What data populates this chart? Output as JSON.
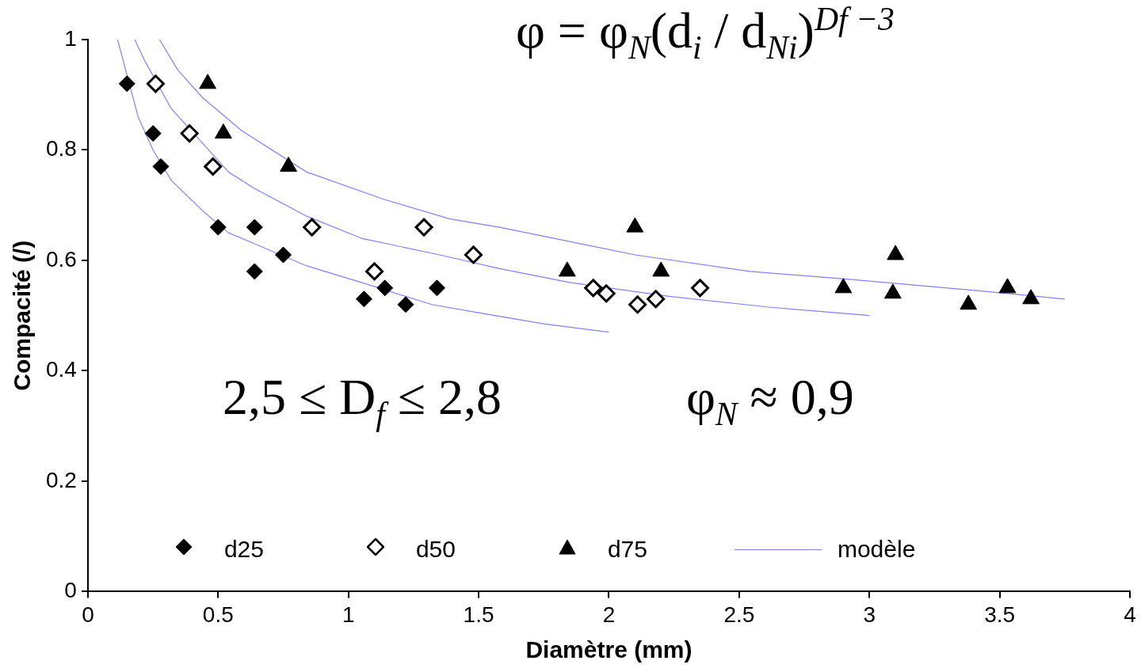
{
  "chart_data": {
    "type": "scatter",
    "xlabel": "Diamètre (mm)",
    "ylabel": "Compacité (/)",
    "xlim": [
      0,
      4
    ],
    "xticks": [
      0,
      0.5,
      1,
      1.5,
      2,
      2.5,
      3,
      3.5,
      4
    ],
    "ylim": [
      0,
      1
    ],
    "yticks": [
      0,
      0.2,
      0.4,
      0.6,
      0.8,
      1
    ],
    "grid": false,
    "legend": "bottom",
    "annotations": [
      "φ = φ$_{N}$(d$_{i}$ / d$_{Ni}$)$^{Df −3}$",
      "2,5 ≤ D$_{f}$ ≤ 2,8",
      "φ$_{N}$ ≈ 0,9"
    ],
    "series": [
      {
        "name": "d25",
        "color": "#000000",
        "marker": "diamond",
        "x": [
          0.15,
          0.25,
          0.28,
          0.5,
          0.64,
          0.64,
          0.75,
          1.06,
          1.14,
          1.22,
          1.34
        ],
        "values": [
          0.92,
          0.83,
          0.77,
          0.66,
          0.66,
          0.58,
          0.61,
          0.53,
          0.55,
          0.52,
          0.55
        ]
      },
      {
        "name": "d50",
        "color": "#000000",
        "marker": "diamond",
        "x": [
          0.26,
          0.39,
          0.48,
          0.86,
          1.1,
          1.29,
          1.48,
          1.94,
          1.99,
          2.11,
          2.18,
          2.35
        ],
        "values": [
          0.92,
          0.83,
          0.77,
          0.66,
          0.58,
          0.66,
          0.61,
          0.55,
          0.54,
          0.52,
          0.53,
          0.55
        ]
      },
      {
        "name": "d75",
        "color": "#000000",
        "marker": "triangle",
        "x": [
          0.46,
          0.52,
          0.77,
          1.84,
          2.1,
          2.2,
          2.9,
          3.09,
          3.1,
          3.38,
          3.53,
          3.62
        ],
        "values": [
          0.92,
          0.83,
          0.77,
          0.58,
          0.66,
          0.58,
          0.55,
          0.54,
          0.61,
          0.52,
          0.55,
          0.53
        ]
      },
      {
        "name": "modèle",
        "type": "line",
        "color": "#8080ff",
        "marker": "none",
        "x": [
          0.114,
          0.193,
          0.25,
          0.32,
          0.44,
          0.54,
          0.64,
          0.84,
          1.05,
          1.32,
          1.5,
          1.75,
          2.0
        ],
        "values": [
          1.0,
          0.86,
          0.8,
          0.745,
          0.69,
          0.65,
          0.63,
          0.59,
          0.56,
          0.52,
          0.505,
          0.485,
          0.47
        ]
      },
      {
        "type": "line",
        "color": "#8080ff",
        "marker": "none",
        "x": [
          0.18,
          0.22,
          0.32,
          0.54,
          0.64,
          0.84,
          1.05,
          1.35,
          1.58,
          1.85,
          2.23,
          2.62,
          3.0
        ],
        "values": [
          1.0,
          0.96,
          0.875,
          0.76,
          0.73,
          0.68,
          0.64,
          0.61,
          0.585,
          0.56,
          0.535,
          0.515,
          0.5
        ]
      },
      {
        "type": "line",
        "color": "#8080ff",
        "marker": "none",
        "x": [
          0.275,
          0.345,
          0.44,
          0.59,
          0.84,
          1.14,
          1.39,
          1.58,
          2.1,
          2.54,
          2.94,
          3.42,
          3.75
        ],
        "values": [
          1.0,
          0.945,
          0.895,
          0.835,
          0.76,
          0.71,
          0.675,
          0.66,
          0.61,
          0.58,
          0.565,
          0.545,
          0.53
        ]
      }
    ]
  }
}
